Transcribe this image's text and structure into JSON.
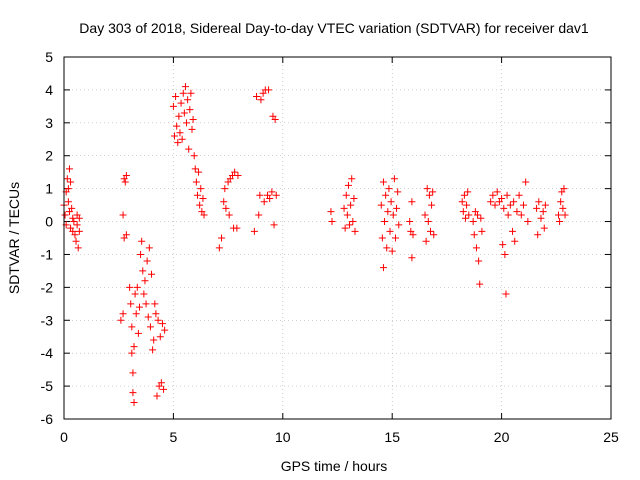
{
  "chart_data": {
    "type": "scatter",
    "title": "Day 303 of 2018, Sidereal Day-to-day VTEC variation (SDTVAR) for receiver dav1",
    "xlabel": "GPS time / hours",
    "ylabel": "SDTVAR / TECUs",
    "xlim": [
      0,
      25
    ],
    "ylim": [
      -6,
      5
    ],
    "xticks": [
      0,
      5,
      10,
      15,
      20,
      25
    ],
    "yticks": [
      -6,
      -5,
      -4,
      -3,
      -2,
      -1,
      0,
      1,
      2,
      3,
      4,
      5
    ],
    "xtick_labels": [
      "0",
      "5",
      "10",
      "15",
      "20",
      "25"
    ],
    "ytick_labels": [
      "-6",
      "-5",
      "-4",
      "-3",
      "-2",
      "-1",
      "0",
      "1",
      "2",
      "3",
      "4",
      "5"
    ],
    "grid": true,
    "marker": "+",
    "color": "#ff0000",
    "series": [
      {
        "name": "SDTVAR",
        "points": [
          [
            0.0,
            0.5
          ],
          [
            0.05,
            0.2
          ],
          [
            0.1,
            0.9
          ],
          [
            0.1,
            -0.1
          ],
          [
            0.15,
            1.3
          ],
          [
            0.2,
            0.6
          ],
          [
            0.2,
            1.0
          ],
          [
            0.25,
            1.6
          ],
          [
            0.25,
            0.3
          ],
          [
            0.3,
            1.2
          ],
          [
            0.3,
            -0.2
          ],
          [
            0.35,
            0.4
          ],
          [
            0.4,
            0.1
          ],
          [
            0.4,
            -0.3
          ],
          [
            0.45,
            0.0
          ],
          [
            0.5,
            -0.4
          ],
          [
            0.55,
            -0.6
          ],
          [
            0.6,
            0.2
          ],
          [
            0.6,
            -0.1
          ],
          [
            0.65,
            -0.8
          ],
          [
            0.7,
            -0.3
          ],
          [
            0.7,
            0.1
          ],
          [
            2.6,
            -3.0
          ],
          [
            2.7,
            -2.8
          ],
          [
            2.7,
            0.2
          ],
          [
            2.75,
            -0.5
          ],
          [
            2.75,
            1.3
          ],
          [
            2.8,
            1.2
          ],
          [
            2.85,
            -0.4
          ],
          [
            2.85,
            1.4
          ],
          [
            3.0,
            -2.0
          ],
          [
            3.05,
            -2.5
          ],
          [
            3.1,
            -3.2
          ],
          [
            3.1,
            -4.0
          ],
          [
            3.15,
            -4.6
          ],
          [
            3.15,
            -5.2
          ],
          [
            3.2,
            -5.5
          ],
          [
            3.2,
            -3.8
          ],
          [
            3.25,
            -2.2
          ],
          [
            3.3,
            -2.8
          ],
          [
            3.35,
            -2.0
          ],
          [
            3.4,
            -3.4
          ],
          [
            3.45,
            -2.6
          ],
          [
            3.5,
            -1.0
          ],
          [
            3.55,
            -0.6
          ],
          [
            3.6,
            -1.5
          ],
          [
            3.65,
            -2.2
          ],
          [
            3.7,
            -1.8
          ],
          [
            3.75,
            -2.5
          ],
          [
            3.8,
            -1.2
          ],
          [
            3.85,
            -2.9
          ],
          [
            3.9,
            -0.8
          ],
          [
            3.95,
            -3.2
          ],
          [
            4.0,
            -1.6
          ],
          [
            4.05,
            -3.9
          ],
          [
            4.1,
            -3.6
          ],
          [
            4.15,
            -2.5
          ],
          [
            4.2,
            -2.8
          ],
          [
            4.25,
            -5.3
          ],
          [
            4.3,
            -3.0
          ],
          [
            4.35,
            -5.0
          ],
          [
            4.4,
            -3.5
          ],
          [
            4.45,
            -4.9
          ],
          [
            4.5,
            -3.1
          ],
          [
            4.55,
            -5.1
          ],
          [
            4.6,
            -3.3
          ],
          [
            5.0,
            3.5
          ],
          [
            5.05,
            2.6
          ],
          [
            5.1,
            3.8
          ],
          [
            5.15,
            2.9
          ],
          [
            5.2,
            2.4
          ],
          [
            5.25,
            3.2
          ],
          [
            5.3,
            2.7
          ],
          [
            5.35,
            3.6
          ],
          [
            5.4,
            2.5
          ],
          [
            5.45,
            3.9
          ],
          [
            5.5,
            3.3
          ],
          [
            5.55,
            4.1
          ],
          [
            5.6,
            3.0
          ],
          [
            5.65,
            3.7
          ],
          [
            5.7,
            2.2
          ],
          [
            5.75,
            3.4
          ],
          [
            5.8,
            3.9
          ],
          [
            5.85,
            2.8
          ],
          [
            5.9,
            3.1
          ],
          [
            5.95,
            2.0
          ],
          [
            6.0,
            1.6
          ],
          [
            6.05,
            1.2
          ],
          [
            6.1,
            0.8
          ],
          [
            6.15,
            1.5
          ],
          [
            6.2,
            0.5
          ],
          [
            6.25,
            1.0
          ],
          [
            6.3,
            0.3
          ],
          [
            6.35,
            0.7
          ],
          [
            6.4,
            0.2
          ],
          [
            7.1,
            -0.8
          ],
          [
            7.2,
            -0.5
          ],
          [
            7.3,
            0.6
          ],
          [
            7.35,
            1.0
          ],
          [
            7.4,
            0.4
          ],
          [
            7.5,
            1.2
          ],
          [
            7.55,
            0.2
          ],
          [
            7.6,
            1.3
          ],
          [
            7.7,
            1.4
          ],
          [
            7.75,
            -0.2
          ],
          [
            7.8,
            1.5
          ],
          [
            7.9,
            -0.2
          ],
          [
            7.95,
            1.4
          ],
          [
            8.7,
            -0.3
          ],
          [
            8.8,
            3.8
          ],
          [
            8.9,
            0.2
          ],
          [
            8.95,
            0.8
          ],
          [
            9.0,
            3.7
          ],
          [
            9.1,
            3.9
          ],
          [
            9.15,
            0.6
          ],
          [
            9.2,
            4.0
          ],
          [
            9.3,
            0.8
          ],
          [
            9.35,
            4.0
          ],
          [
            9.4,
            0.7
          ],
          [
            9.5,
            0.9
          ],
          [
            9.55,
            3.2
          ],
          [
            9.6,
            -0.1
          ],
          [
            9.65,
            3.1
          ],
          [
            9.7,
            0.8
          ],
          [
            12.2,
            0.3
          ],
          [
            12.25,
            0.0
          ],
          [
            12.8,
            0.4
          ],
          [
            12.85,
            -0.2
          ],
          [
            12.9,
            0.8
          ],
          [
            12.95,
            0.2
          ],
          [
            13.0,
            1.1
          ],
          [
            13.05,
            -0.1
          ],
          [
            13.1,
            0.5
          ],
          [
            13.15,
            1.3
          ],
          [
            13.2,
            0.0
          ],
          [
            13.25,
            0.7
          ],
          [
            13.3,
            -0.3
          ],
          [
            14.5,
            0.5
          ],
          [
            14.55,
            -0.5
          ],
          [
            14.6,
            1.2
          ],
          [
            14.6,
            -1.4
          ],
          [
            14.65,
            0.0
          ],
          [
            14.7,
            0.8
          ],
          [
            14.75,
            -0.8
          ],
          [
            14.8,
            0.3
          ],
          [
            14.85,
            1.0
          ],
          [
            14.9,
            -0.3
          ],
          [
            14.95,
            0.6
          ],
          [
            15.0,
            -0.9
          ],
          [
            15.05,
            0.2
          ],
          [
            15.1,
            1.3
          ],
          [
            15.15,
            -0.5
          ],
          [
            15.2,
            0.4
          ],
          [
            15.25,
            0.9
          ],
          [
            15.3,
            -0.1
          ],
          [
            15.8,
            0.0
          ],
          [
            15.85,
            -0.3
          ],
          [
            15.9,
            0.6
          ],
          [
            15.9,
            -1.1
          ],
          [
            15.95,
            -0.4
          ],
          [
            16.5,
            0.2
          ],
          [
            16.55,
            -0.6
          ],
          [
            16.6,
            1.0
          ],
          [
            16.65,
            0.0
          ],
          [
            16.7,
            0.8
          ],
          [
            16.75,
            -0.3
          ],
          [
            16.8,
            0.5
          ],
          [
            16.85,
            0.9
          ],
          [
            16.9,
            -0.4
          ],
          [
            18.2,
            0.6
          ],
          [
            18.25,
            0.3
          ],
          [
            18.3,
            0.8
          ],
          [
            18.35,
            0.1
          ],
          [
            18.4,
            0.5
          ],
          [
            18.45,
            0.9
          ],
          [
            18.5,
            0.2
          ],
          [
            18.7,
            0.0
          ],
          [
            18.75,
            -0.4
          ],
          [
            18.8,
            0.3
          ],
          [
            18.85,
            -0.8
          ],
          [
            18.9,
            0.2
          ],
          [
            18.95,
            -1.2
          ],
          [
            19.0,
            -1.9
          ],
          [
            19.05,
            0.1
          ],
          [
            19.1,
            -0.3
          ],
          [
            19.5,
            0.6
          ],
          [
            19.6,
            0.8
          ],
          [
            19.7,
            0.5
          ],
          [
            19.8,
            0.9
          ],
          [
            19.9,
            0.6
          ],
          [
            20.0,
            0.7
          ],
          [
            20.05,
            -0.7
          ],
          [
            20.1,
            0.4
          ],
          [
            20.15,
            -1.0
          ],
          [
            20.2,
            -2.2
          ],
          [
            20.25,
            0.8
          ],
          [
            20.3,
            0.2
          ],
          [
            20.4,
            0.5
          ],
          [
            20.5,
            -0.3
          ],
          [
            20.55,
            0.6
          ],
          [
            20.6,
            -0.6
          ],
          [
            20.7,
            0.3
          ],
          [
            20.8,
            0.8
          ],
          [
            20.9,
            0.2
          ],
          [
            21.0,
            0.5
          ],
          [
            21.1,
            1.2
          ],
          [
            21.2,
            0.0
          ],
          [
            21.6,
            0.4
          ],
          [
            21.65,
            -0.4
          ],
          [
            21.7,
            0.6
          ],
          [
            21.8,
            0.1
          ],
          [
            21.9,
            0.3
          ],
          [
            21.95,
            -0.2
          ],
          [
            22.0,
            0.5
          ],
          [
            22.6,
            0.2
          ],
          [
            22.65,
            0.0
          ],
          [
            22.7,
            0.6
          ],
          [
            22.75,
            0.9
          ],
          [
            22.8,
            0.4
          ],
          [
            22.85,
            1.0
          ],
          [
            22.9,
            0.2
          ]
        ]
      }
    ]
  }
}
